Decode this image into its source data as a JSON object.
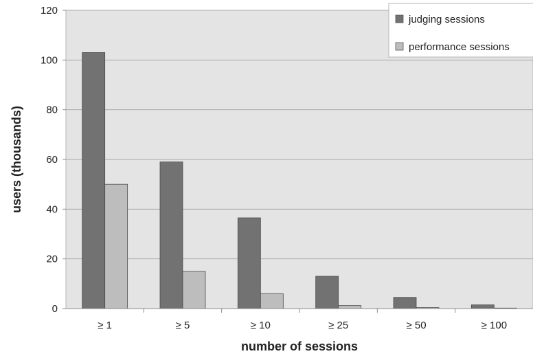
{
  "chart_data": {
    "type": "bar",
    "title": "",
    "xlabel": "number of sessions",
    "ylabel": "users (thousands)",
    "categories": [
      "≥ 1",
      "≥ 5",
      "≥ 10",
      "≥ 25",
      "≥ 50",
      "≥ 100"
    ],
    "series": [
      {
        "name": "judging sessions",
        "values": [
          103,
          59,
          36.5,
          13,
          4.5,
          1.5
        ],
        "color": "#727272"
      },
      {
        "name": "performance sessions",
        "values": [
          50,
          15,
          6,
          1.2,
          0.4,
          0.2
        ],
        "color": "#bdbdbd"
      }
    ],
    "ylim": [
      0,
      120
    ],
    "yticks": [
      0,
      20,
      40,
      60,
      80,
      100,
      120
    ],
    "grid": true,
    "legend": "top-right",
    "plot_background": "#e4e4e4"
  }
}
